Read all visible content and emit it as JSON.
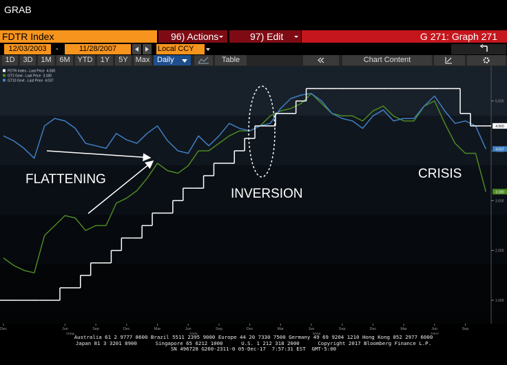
{
  "header": {
    "title": "GRAB"
  },
  "toolbar": {
    "security": "FDTR Index",
    "actions": "96) Actions",
    "edit": "97) Edit",
    "graph": "G 271: Graph 271",
    "start_date": "12/03/2003",
    "date_separator": "-",
    "end_date": "11/28/2007",
    "currency": "Local CCY",
    "periods": [
      "1D",
      "3D",
      "1M",
      "6M",
      "YTD",
      "1Y",
      "5Y",
      "Max"
    ],
    "frequency": "Daily",
    "table": "Table",
    "chart_content": "Chart Content"
  },
  "chart_data": {
    "type": "line",
    "x": [
      "2003-12",
      "2004-01",
      "2004-02",
      "2004-03",
      "2004-04",
      "2004-05",
      "2004-06",
      "2004-07",
      "2004-08",
      "2004-09",
      "2004-10",
      "2004-11",
      "2004-12",
      "2005-01",
      "2005-02",
      "2005-03",
      "2005-04",
      "2005-05",
      "2005-06",
      "2005-07",
      "2005-08",
      "2005-09",
      "2005-10",
      "2005-11",
      "2005-12",
      "2006-01",
      "2006-02",
      "2006-03",
      "2006-04",
      "2006-05",
      "2006-06",
      "2006-07",
      "2006-08",
      "2006-09",
      "2006-10",
      "2006-11",
      "2006-12",
      "2007-01",
      "2007-02",
      "2007-03",
      "2007-04",
      "2007-05",
      "2007-06",
      "2007-07",
      "2007-08",
      "2007-09",
      "2007-10",
      "2007-11"
    ],
    "series": [
      {
        "name": "FDTR Index - Last Price",
        "color": "#ffffff",
        "style": "step",
        "last": {
          "value": 4.5,
          "label": "4.500"
        },
        "values": [
          1,
          1,
          1,
          1,
          1,
          1,
          1.25,
          1.25,
          1.5,
          1.75,
          1.75,
          2,
          2.25,
          2.25,
          2.5,
          2.75,
          2.75,
          3,
          3.25,
          3.25,
          3.5,
          3.75,
          3.75,
          4,
          4.25,
          4.5,
          4.5,
          4.75,
          4.75,
          5,
          5.25,
          5.25,
          5.25,
          5.25,
          5.25,
          5.25,
          5.25,
          5.25,
          5.25,
          5.25,
          5.25,
          5.25,
          5.25,
          5.25,
          5.25,
          4.75,
          4.5,
          4.5
        ]
      },
      {
        "name": "GT2 Govt - Last Price",
        "color": "#4c8a22",
        "style": "line",
        "last": {
          "value": 3.18,
          "label": "3.180"
        },
        "values": [
          1.85,
          1.7,
          1.6,
          1.55,
          2.3,
          2.5,
          2.7,
          2.65,
          2.4,
          2.5,
          2.5,
          2.95,
          3.05,
          3.2,
          3.45,
          3.75,
          3.6,
          3.55,
          3.7,
          4,
          4,
          4.15,
          4.3,
          4.4,
          4.4,
          4.5,
          4.7,
          4.8,
          4.85,
          4.95,
          5.15,
          4.95,
          4.75,
          4.7,
          4.7,
          4.6,
          4.8,
          4.9,
          4.7,
          4.6,
          4.6,
          4.9,
          5,
          4.55,
          4.15,
          3.95,
          3.95,
          3.18
        ]
      },
      {
        "name": "GT10 Govt - Last Price",
        "color": "#3f7fc4",
        "style": "line",
        "last": {
          "value": 4.037,
          "label": "4.037"
        },
        "values": [
          4.3,
          4.2,
          4.05,
          3.85,
          4.5,
          4.65,
          4.6,
          4.45,
          4.15,
          4.1,
          4.05,
          4.35,
          4.22,
          4.15,
          4.35,
          4.5,
          4.2,
          4,
          3.95,
          4.3,
          4.1,
          4.3,
          4.55,
          4.45,
          4.4,
          4.5,
          4.55,
          4.85,
          5.05,
          5.12,
          5.15,
          5,
          4.75,
          4.65,
          4.6,
          4.45,
          4.7,
          4.82,
          4.6,
          4.65,
          4.65,
          4.9,
          5.1,
          4.8,
          4.55,
          4.6,
          4.5,
          4.037
        ]
      }
    ],
    "ylim": [
      0.53,
      5.7
    ],
    "yticks": [
      {
        "value": 1,
        "label": "1.000"
      },
      {
        "value": 2,
        "label": "2.000"
      },
      {
        "value": 3,
        "label": "3.000"
      },
      {
        "value": 4,
        "label": "4.000"
      },
      {
        "value": 5,
        "label": "5.000"
      }
    ],
    "xticks": [
      {
        "value": "2003-12",
        "label": "Dec"
      },
      {
        "value": "2004-06",
        "label": "Jun"
      },
      {
        "value": "2004-09",
        "label": "Sep"
      },
      {
        "value": "2004-12",
        "label": "Dec"
      },
      {
        "value": "2005-03",
        "label": "Mar"
      },
      {
        "value": "2005-06",
        "label": "Jun"
      },
      {
        "value": "2005-09",
        "label": "Sep"
      },
      {
        "value": "2005-12",
        "label": "Dec"
      },
      {
        "value": "2006-03",
        "label": "Mar"
      },
      {
        "value": "2006-06",
        "label": "Jun"
      },
      {
        "value": "2006-09",
        "label": "Sep"
      },
      {
        "value": "2006-12",
        "label": "Dec"
      },
      {
        "value": "2007-03",
        "label": "Mar"
      },
      {
        "value": "2007-06",
        "label": "Jun"
      },
      {
        "value": "2007-09",
        "label": "Sep"
      }
    ],
    "x_year_labels": [
      "2004",
      "2005",
      "2006",
      "2007"
    ],
    "annotations": [
      "FLATTENING",
      "INVERSION",
      "CRISIS"
    ],
    "grid": false
  },
  "footer": {
    "lines": [
      "Australia 61 2 9777 8600 Brazil 5511 2395 9000 Europe 44 20 7330 7500 Germany 49 69 9204 1210 Hong Kong 852 2977 6000",
      "Japan 81 3 3201 8900      Singapore 65 6212 1000      U.S. 1 212 318 2000      Copyright 2017 Bloomberg Finance L.P.",
      "SN 496728 G260-2311-0 05-Dec-17  7:57:31 EST  GMT-5:00"
    ]
  }
}
